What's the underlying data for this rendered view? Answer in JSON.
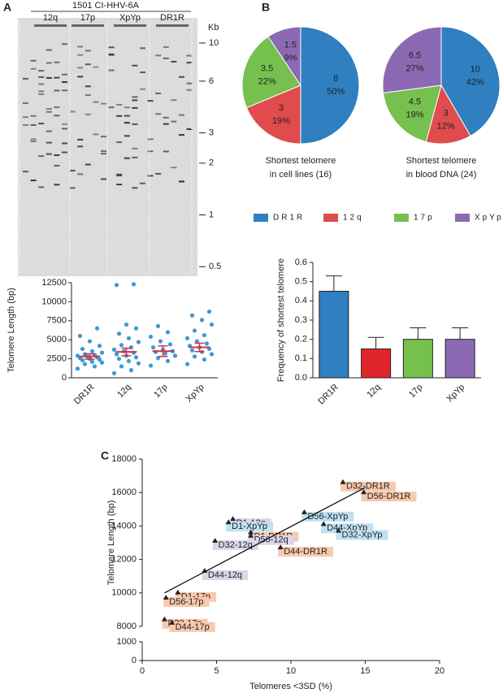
{
  "panels": [
    "A",
    "B",
    "C"
  ],
  "chart_data": [
    {
      "type": "gel",
      "title": "1501 CI-HHV-6A",
      "lanes": [
        "12q",
        "17p",
        "XpYp",
        "DR1R"
      ],
      "unit": "Kb",
      "log": true,
      "ylim": [
        0.44,
        14
      ],
      "yticks": [
        10,
        6,
        3,
        2,
        1,
        0.5
      ]
    },
    {
      "type": "dotplot",
      "ylabel": "Telomere Length (bp)",
      "categories": [
        "DR1R",
        "12q",
        "17p",
        "XpYp"
      ],
      "points": [
        [
          1200,
          1500,
          1800,
          2000,
          2100,
          2300,
          2400,
          2500,
          2600,
          2700,
          2800,
          2900,
          3000,
          3100,
          3300,
          3500,
          3800,
          4200,
          4800,
          5500,
          6500
        ],
        [
          600,
          1000,
          1500,
          1900,
          2200,
          2500,
          2700,
          2900,
          3100,
          3300,
          3500,
          3700,
          4000,
          4300,
          4700,
          5200,
          5800,
          6500,
          7000,
          12200,
          12300
        ],
        [
          1600,
          2200,
          2600,
          2900,
          3200,
          3400,
          3500,
          3700,
          4000,
          4400,
          4800,
          5400,
          6000,
          6800
        ],
        [
          1800,
          2400,
          2800,
          3100,
          3400,
          3600,
          3800,
          4000,
          4200,
          4500,
          4800,
          5200,
          5600,
          6200,
          7000,
          7600,
          8200,
          8700
        ]
      ],
      "means": [
        2800,
        3400,
        3500,
        4000
      ],
      "errors": [
        350,
        500,
        700,
        550
      ],
      "color": "#3a9ad9",
      "error_color": "#d6304a",
      "ylim": [
        0,
        12500
      ],
      "yticks": [
        0,
        2500,
        5000,
        7500,
        10000,
        12500
      ]
    },
    {
      "type": "pie",
      "subtitle": [
        "Shortest telomere",
        "in cell lines (16)"
      ],
      "values": [
        8,
        3,
        3.5,
        1.5
      ],
      "percent_labels": [
        "50%",
        "19%",
        "22%",
        "9%"
      ]
    },
    {
      "type": "pie",
      "subtitle": [
        "Shortest telomere",
        "in blood DNA (24)"
      ],
      "values": [
        10,
        3,
        4.5,
        6.5
      ],
      "percent_labels": [
        "42%",
        "12%",
        "19%",
        "27%"
      ]
    },
    {
      "type": "legend",
      "labels": [
        "DR1R",
        "12q",
        "17p",
        "XpYp"
      ],
      "colors": [
        "#2f7fc1",
        "#e04b4e",
        "#75c04f",
        "#8b6ab3"
      ]
    },
    {
      "type": "bar",
      "ylabel": "Frequency of shortest telomere",
      "categories": [
        "DR1R",
        "12q",
        "17p",
        "XpYp"
      ],
      "values": [
        0.45,
        0.15,
        0.2,
        0.2
      ],
      "errors": [
        0.08,
        0.06,
        0.06,
        0.06
      ],
      "colors": [
        "#2f7fc1",
        "#e0262b",
        "#75c04f",
        "#8b6ab3"
      ],
      "ylim": [
        0,
        0.6
      ],
      "yticks": [
        {
          "value": 0,
          "label": "0.0"
        },
        0.1,
        0.2,
        0.3,
        0.4,
        0.5,
        0.6
      ]
    },
    {
      "type": "scatter",
      "xlabel": "Telomeres <3SD (%)",
      "ylabel": "Telomere Length (bp)",
      "labels": [
        "D32-DR1R",
        "D56-DR1R",
        "D56-XpYp",
        "D44-XpYp",
        "D32-XpYp",
        "D1-12q",
        "D1-XpYp",
        "D1-DR1R",
        "D56-12q",
        "D32-12q",
        "D44-DR1R",
        "D44-12q",
        "D1-17p",
        "D56-17p",
        "D32-17p",
        "D44-17p"
      ],
      "x": [
        13.5,
        14.9,
        10.9,
        12.2,
        13.2,
        6.1,
        5.8,
        7.3,
        7.3,
        4.9,
        9.3,
        4.2,
        2.4,
        1.6,
        1.5,
        2.0
      ],
      "y": [
        16600,
        16000,
        14800,
        14100,
        13700,
        14400,
        14200,
        13600,
        13400,
        13100,
        12700,
        11300,
        10000,
        9700,
        8400,
        8200
      ],
      "label_colors": [
        "#f8c9ac",
        "#f8c9ac",
        "#bfe2f2",
        "#bfe2f2",
        "#bfe2f2",
        "#dcd6ea",
        "#bfe2f2",
        "#f8c9ac",
        "#dcd6ea",
        "#dcd6ea",
        "#f8c9ac",
        "#dcd6ea",
        "#f8c9ac",
        "#f8c9ac",
        "#f8c9ac",
        "#f8c9ac"
      ],
      "trend": {
        "x": [
          1.5,
          15
        ],
        "y": [
          10000,
          16300
        ]
      },
      "xlim": [
        0,
        20
      ],
      "xticks": [
        0,
        5,
        10,
        15,
        20
      ],
      "ylim": [
        8000,
        18000
      ],
      "yticks": [
        8000,
        10000,
        12000,
        14000,
        16000,
        18000
      ],
      "ylim_lower": [
        0,
        1000
      ],
      "yticks_lower": [
        0,
        1000
      ]
    }
  ]
}
